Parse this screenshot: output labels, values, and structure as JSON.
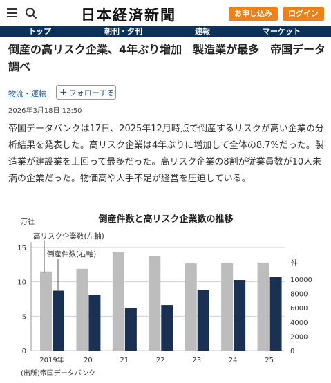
{
  "header": {
    "logo": "日本経済新聞",
    "subscribe_label": "お申し込み",
    "login_label": "ログイン"
  },
  "nav": {
    "items": [
      "トップ",
      "朝刊・夕刊",
      "速報",
      "マーケット"
    ]
  },
  "article": {
    "title": "倒産の高リスク企業、4年ぶり増加　製造業が最多　帝国データ調べ",
    "category": "物流・運輸",
    "follow_label": "フォローする",
    "date": "2026年3月18日 12:50",
    "body": "帝国データバンクは17日、2025年12月時点で倒産するリスクが高い企業の分析結果を発表した。高リスク企業は4年ぶりに増加して全体の8.7%だった。製造業が建設業を上回って最多だった。高リスク企業の8割が従業員数が10人未満の企業だった。物価高や人手不足が経営を圧迫している。"
  },
  "colors": {
    "nav_bg": "#0c3259",
    "button": "#f07f16",
    "bar_gray": "#bdbdbd",
    "bar_navy": "#1b3153"
  },
  "chart_data": {
    "type": "bar",
    "title": "倒産件数と高リスク企業数の推移",
    "left_unit": "万社",
    "right_unit": "件",
    "categories": [
      "2019年",
      "20",
      "21",
      "22",
      "23",
      "24",
      "25"
    ],
    "series": [
      {
        "name": "高リスク企業数(左軸)",
        "axis": "left",
        "color": "#bdbdbd",
        "values": [
          11.5,
          11.9,
          14.3,
          13.7,
          12.7,
          12.7,
          12.8
        ]
      },
      {
        "name": "倒産件数(右軸)",
        "axis": "right",
        "color": "#1b3153",
        "values": [
          8400,
          7800,
          6000,
          6400,
          8500,
          9900,
          10300
        ]
      }
    ],
    "left_ticks": [
      "0",
      "5",
      "10",
      "15"
    ],
    "right_ticks": [
      "0",
      "2000",
      "4000",
      "6000",
      "8000",
      "10000"
    ],
    "left_range": [
      0,
      15
    ],
    "right_range": [
      0,
      10000
    ],
    "source": "(出所)帝国データバンク",
    "grid": true
  }
}
